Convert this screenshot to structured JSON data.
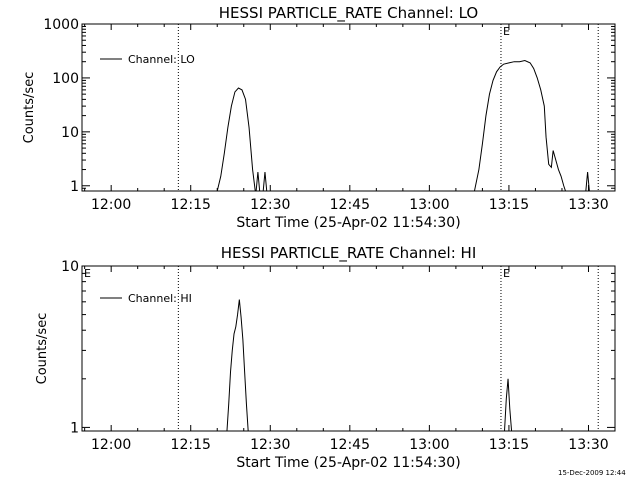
{
  "footer": {
    "timestamp": "15-Dec-2009 12:44"
  },
  "chart_data": [
    {
      "type": "line",
      "title": "HESSI PARTICLE_RATE Channel: LO",
      "xlabel": "Start Time (25-Apr-02 11:54:30)",
      "ylabel": "Counts/sec",
      "yscale": "log",
      "xlim": [
        "11:54:30",
        "13:35:00"
      ],
      "ylim": [
        0.8,
        1000
      ],
      "xticks": [
        "12:00",
        "12:15",
        "12:30",
        "12:45",
        "13:00",
        "13:15",
        "13:30"
      ],
      "yticks": [
        "1",
        "10",
        "100",
        "1000"
      ],
      "legend": "top-left",
      "markers": [
        {
          "time": "12:12:40",
          "label": ""
        },
        {
          "time": "13:13:30",
          "label": "E"
        },
        {
          "time": "13:31:50",
          "label": ""
        }
      ],
      "series": [
        {
          "name": "Channel: LO",
          "points": [
            [
              "12:20:00",
              0.8
            ],
            [
              "12:20:40",
              1.5
            ],
            [
              "12:21:20",
              4
            ],
            [
              "12:22:00",
              12
            ],
            [
              "12:22:40",
              30
            ],
            [
              "12:23:20",
              55
            ],
            [
              "12:24:00",
              65
            ],
            [
              "12:24:40",
              60
            ],
            [
              "12:25:20",
              40
            ],
            [
              "12:26:00",
              12
            ],
            [
              "12:26:40",
              2
            ],
            [
              "12:27:10",
              0.8
            ],
            [
              "12:27:20",
              0.8
            ],
            [
              "12:27:40",
              1.8
            ],
            [
              "12:28:00",
              0.8
            ],
            [
              "12:28:40",
              0.8
            ],
            [
              "12:29:00",
              1.8
            ],
            [
              "12:29:20",
              0.8
            ],
            [
              "13:08:30",
              0.8
            ],
            [
              "13:09:20",
              2
            ],
            [
              "13:10:00",
              6
            ],
            [
              "13:10:40",
              20
            ],
            [
              "13:11:20",
              50
            ],
            [
              "13:12:00",
              90
            ],
            [
              "13:12:40",
              130
            ],
            [
              "13:13:20",
              160
            ],
            [
              "13:14:00",
              180
            ],
            [
              "13:15:00",
              190
            ],
            [
              "13:16:00",
              200
            ],
            [
              "13:17:00",
              200
            ],
            [
              "13:18:00",
              210
            ],
            [
              "13:19:00",
              190
            ],
            [
              "13:19:40",
              150
            ],
            [
              "13:20:20",
              100
            ],
            [
              "13:21:00",
              60
            ],
            [
              "13:21:40",
              30
            ],
            [
              "13:22:00",
              8
            ],
            [
              "13:22:30",
              2.5
            ],
            [
              "13:23:00",
              2.2
            ],
            [
              "13:23:20",
              4.5
            ],
            [
              "13:23:50",
              3
            ],
            [
              "13:24:20",
              2
            ],
            [
              "13:24:50",
              1.5
            ],
            [
              "13:25:20",
              1
            ],
            [
              "13:25:40",
              0.8
            ],
            [
              "13:29:30",
              0.8
            ],
            [
              "13:29:50",
              1.8
            ],
            [
              "13:30:10",
              0.8
            ]
          ]
        }
      ]
    },
    {
      "type": "line",
      "title": "HESSI PARTICLE_RATE Channel: HI",
      "xlabel": "Start Time (25-Apr-02 11:54:30)",
      "ylabel": "Counts/sec",
      "yscale": "log",
      "xlim": [
        "11:54:30",
        "13:35:00"
      ],
      "ylim": [
        0.95,
        10
      ],
      "xticks": [
        "12:00",
        "12:15",
        "12:30",
        "12:45",
        "13:00",
        "13:15",
        "13:30"
      ],
      "yticks": [
        "1",
        "10"
      ],
      "legend": "top-left",
      "markers": [
        {
          "time": "11:54:30",
          "label": "E"
        },
        {
          "time": "12:12:40",
          "label": ""
        },
        {
          "time": "13:13:30",
          "label": "E"
        },
        {
          "time": "13:31:50",
          "label": ""
        }
      ],
      "series": [
        {
          "name": "Channel: HI",
          "points": [
            [
              "12:21:50",
              0.95
            ],
            [
              "12:22:10",
              1.4
            ],
            [
              "12:22:30",
              2.2
            ],
            [
              "12:22:50",
              3.0
            ],
            [
              "12:23:10",
              3.8
            ],
            [
              "12:23:30",
              4.2
            ],
            [
              "12:23:50",
              5.0
            ],
            [
              "12:24:10",
              6.2
            ],
            [
              "12:24:30",
              4.8
            ],
            [
              "12:24:50",
              3.5
            ],
            [
              "12:25:10",
              2.2
            ],
            [
              "12:25:30",
              1.4
            ],
            [
              "12:25:50",
              0.95
            ],
            [
              "13:14:10",
              0.95
            ],
            [
              "13:14:30",
              1.5
            ],
            [
              "13:14:50",
              2.0
            ],
            [
              "13:15:10",
              1.3
            ],
            [
              "13:15:30",
              0.95
            ]
          ]
        }
      ]
    }
  ]
}
